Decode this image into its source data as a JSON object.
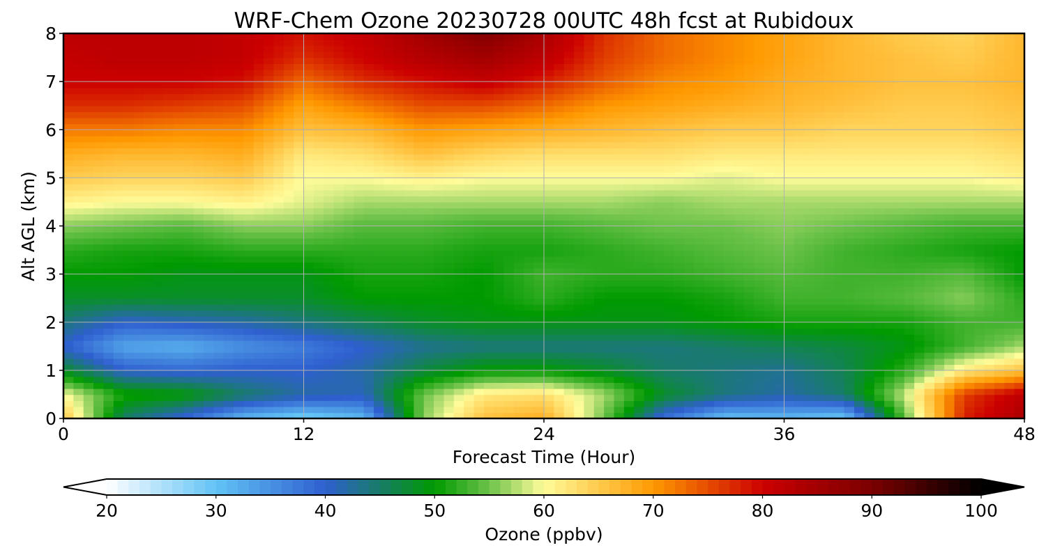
{
  "chart_data": {
    "type": "heatmap",
    "title": "WRF-Chem Ozone  20230728 00UTC 48h fcst at Rubidoux",
    "xlabel": "Forecast Time (Hour)",
    "ylabel": "Alt AGL (km)",
    "xlim": [
      0,
      48
    ],
    "ylim": [
      0,
      8
    ],
    "xticks": [
      0,
      12,
      24,
      36,
      48
    ],
    "yticks": [
      0,
      1,
      2,
      3,
      4,
      5,
      6,
      7,
      8
    ],
    "grid": true,
    "x": [
      0,
      3,
      6,
      9,
      12,
      15,
      18,
      21,
      24,
      27,
      30,
      33,
      36,
      39,
      42,
      45,
      48
    ],
    "y": [
      0,
      0.5,
      1,
      1.5,
      2,
      2.5,
      3,
      3.5,
      4,
      4.5,
      5,
      5.5,
      6,
      6.5,
      7,
      7.5,
      8
    ],
    "z": [
      [
        66,
        45,
        39,
        31,
        28,
        31,
        56,
        66,
        68,
        55,
        38,
        30,
        31,
        29,
        54,
        78,
        84
      ],
      [
        60,
        51,
        50,
        45,
        42,
        41,
        55,
        62,
        63,
        57,
        48,
        44,
        42,
        45,
        58,
        76,
        82
      ],
      [
        48,
        40,
        39,
        40,
        40,
        42,
        47,
        50,
        50,
        48,
        45,
        44,
        43,
        46,
        52,
        62,
        66
      ],
      [
        40,
        33,
        32,
        35,
        37,
        40,
        43,
        44,
        44,
        44,
        44,
        45,
        46,
        47,
        49,
        53,
        57
      ],
      [
        44,
        40,
        41,
        42,
        44,
        46,
        48,
        49,
        49,
        49,
        49,
        50,
        51,
        51,
        51,
        53,
        53
      ],
      [
        48,
        48,
        48,
        48,
        48,
        50,
        50,
        50,
        52,
        50,
        50,
        51,
        53,
        53,
        54,
        56,
        52
      ],
      [
        50,
        50,
        49,
        49,
        49,
        51,
        51,
        50,
        53,
        52,
        52,
        53,
        54,
        53,
        53,
        54,
        50
      ],
      [
        52,
        51,
        51,
        52,
        52,
        52,
        52,
        51,
        51,
        52,
        53,
        54,
        55,
        53,
        52,
        51,
        50
      ],
      [
        56,
        55,
        54,
        56,
        56,
        54,
        54,
        53,
        53,
        54,
        55,
        55,
        56,
        55,
        54,
        53,
        53
      ],
      [
        61,
        60,
        60,
        61,
        59,
        57,
        57,
        57,
        57,
        57,
        56,
        57,
        57,
        57,
        57,
        57,
        57
      ],
      [
        65,
        64,
        64,
        65,
        60,
        60,
        61,
        60,
        60,
        60,
        60,
        59,
        60,
        60,
        60,
        60,
        61
      ],
      [
        68,
        67,
        67,
        68,
        62,
        63,
        66,
        64,
        63,
        63,
        63,
        62,
        62,
        62,
        62,
        62,
        63
      ],
      [
        72,
        72,
        71,
        71,
        66,
        67,
        70,
        69,
        68,
        67,
        66,
        65,
        65,
        64,
        64,
        64,
        65
      ],
      [
        77,
        77,
        76,
        75,
        69,
        72,
        75,
        75,
        73,
        70,
        69,
        68,
        67,
        66,
        65,
        65,
        66
      ],
      [
        80,
        80,
        80,
        79,
        73,
        77,
        79,
        81,
        78,
        74,
        71,
        70,
        68,
        67,
        66,
        66,
        67
      ],
      [
        81,
        82,
        82,
        81,
        77,
        80,
        83,
        85,
        82,
        76,
        73,
        71,
        69,
        67,
        66,
        65,
        67
      ],
      [
        82,
        82,
        82,
        81,
        79,
        81,
        85,
        89,
        84,
        77,
        73,
        71,
        69,
        67,
        65,
        64,
        67
      ]
    ],
    "colorbar": {
      "label": "Ozone  (ppbv)",
      "min": 20,
      "max": 100,
      "ticks": [
        20,
        30,
        40,
        50,
        60,
        70,
        80,
        90,
        100
      ],
      "extend": "both",
      "stops": [
        {
          "v": 20,
          "c": "#ffffff"
        },
        {
          "v": 30,
          "c": "#62c3f5"
        },
        {
          "v": 40,
          "c": "#2f5fcf"
        },
        {
          "v": 50,
          "c": "#009a00"
        },
        {
          "v": 55,
          "c": "#6cc24a"
        },
        {
          "v": 60,
          "c": "#fffc9a"
        },
        {
          "v": 70,
          "c": "#ff9900"
        },
        {
          "v": 80,
          "c": "#cc0000"
        },
        {
          "v": 90,
          "c": "#7a0000"
        },
        {
          "v": 100,
          "c": "#000000"
        }
      ]
    }
  }
}
